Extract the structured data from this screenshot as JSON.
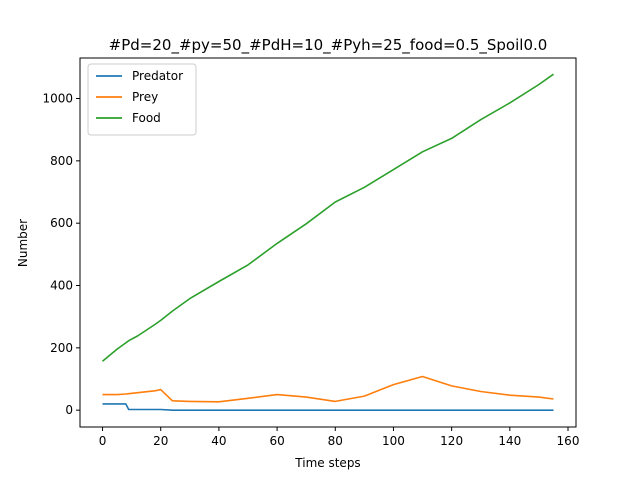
{
  "chart_data": {
    "type": "line",
    "title": "#Pd=20_#py=50_#PdH=10_#Pyh=25_food=0.5_Spoil0.0",
    "xlabel": "Time steps",
    "ylabel": "Number",
    "xlim": [
      -7.75,
      162.75
    ],
    "ylim": [
      -54,
      1130
    ],
    "xticks": [
      0,
      20,
      40,
      60,
      80,
      100,
      120,
      140,
      160
    ],
    "yticks": [
      0,
      200,
      400,
      600,
      800,
      1000
    ],
    "grid": false,
    "legend_position": "top-left",
    "x": [
      0,
      5,
      8,
      9,
      12,
      18,
      20,
      24,
      30,
      40,
      50,
      60,
      70,
      80,
      90,
      100,
      110,
      120,
      130,
      140,
      150,
      155
    ],
    "series": [
      {
        "name": "Predator",
        "color": "#1f77b4",
        "values": [
          20,
          20,
          20,
          2,
          2,
          2,
          2,
          0,
          0,
          0,
          0,
          0,
          0,
          0,
          0,
          0,
          0,
          0,
          0,
          0,
          0,
          0
        ]
      },
      {
        "name": "Prey",
        "color": "#ff7f0e",
        "values": [
          50,
          50,
          52,
          53,
          56,
          62,
          66,
          30,
          28,
          27,
          38,
          50,
          42,
          28,
          45,
          82,
          108,
          78,
          60,
          48,
          42,
          36
        ]
      },
      {
        "name": "Food",
        "color": "#2ca02c",
        "values": [
          157,
          196,
          216,
          223,
          238,
          275,
          288,
          318,
          358,
          413,
          466,
          535,
          598,
          668,
          715,
          772,
          829,
          872,
          932,
          986,
          1045,
          1078
        ]
      }
    ]
  }
}
